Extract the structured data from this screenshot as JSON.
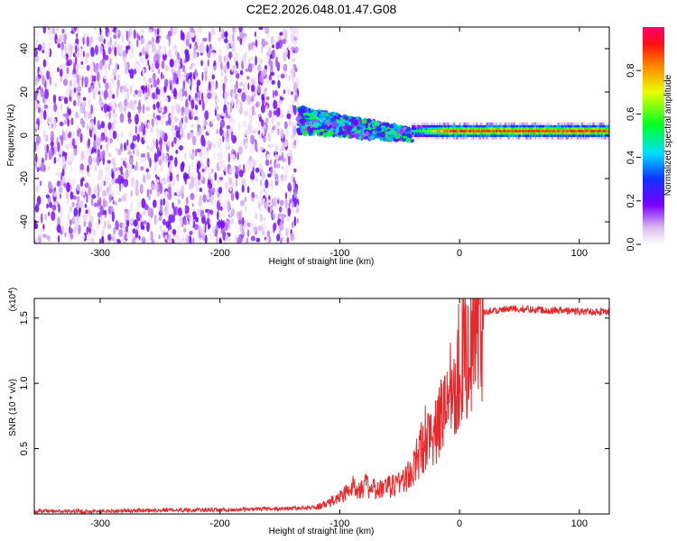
{
  "title": "C2E2.2026.048.01.47.G08",
  "chart_data": [
    {
      "type": "heatmap",
      "xlabel": "Height of straight line (km)",
      "ylabel": "Frequency (Hz)",
      "xlim": [
        -355,
        125
      ],
      "ylim": [
        -50,
        50
      ],
      "x_ticks": [
        -300,
        -200,
        -100,
        0,
        100
      ],
      "x_tick_labels": [
        "-300",
        "-200",
        "-100",
        "0",
        "100"
      ],
      "y_ticks": [
        -40,
        -20,
        0,
        20,
        40
      ],
      "y_tick_labels": [
        "-40",
        "-20",
        "0",
        "20",
        "40"
      ],
      "colorbar": {
        "label": "Normalized spectral amplitude",
        "range": [
          0,
          1
        ],
        "ticks": [
          0.0,
          0.2,
          0.4,
          0.6,
          0.8
        ],
        "tick_labels": [
          "0.0",
          "0.2",
          "0.4",
          "0.6",
          "0.8"
        ]
      },
      "regions": [
        {
          "x_range": [
            -355,
            -135
          ],
          "freq_range": [
            -50,
            50
          ],
          "description": "broadband noise",
          "amplitude": 0.1
        },
        {
          "x_range": [
            -135,
            -40
          ],
          "freq_center_start": 7,
          "freq_center_end": 0,
          "amplitude": 0.45
        },
        {
          "x_range": [
            -40,
            125
          ],
          "freq_center": 2,
          "amplitude_peak": 0.95
        }
      ]
    },
    {
      "type": "line",
      "xlabel": "Height of straight line (km)",
      "ylabel": "SNR (10 * v/v)",
      "scale_label": "(x10",
      "scale_exponent": "4",
      "scale_close": ")",
      "xlim": [
        -355,
        125
      ],
      "ylim": [
        0,
        1.65
      ],
      "x_ticks": [
        -300,
        -200,
        -100,
        0,
        100
      ],
      "x_tick_labels": [
        "-300",
        "-200",
        "-100",
        "0",
        "100"
      ],
      "y_ticks": [
        0.5,
        1.0,
        1.5
      ],
      "y_tick_labels": [
        "0.5",
        "1.0",
        "1.5"
      ],
      "color": "#e8282a",
      "series": [
        {
          "name": "SNR",
          "x": [
            -355,
            -300,
            -250,
            -200,
            -150,
            -120,
            -110,
            -100,
            -90,
            -80,
            -70,
            -60,
            -50,
            -40,
            -30,
            -25,
            -20,
            -15,
            -10,
            -5,
            0,
            5,
            10,
            15,
            20,
            30,
            50,
            80,
            100,
            125
          ],
          "y": [
            0.02,
            0.02,
            0.03,
            0.03,
            0.04,
            0.05,
            0.08,
            0.13,
            0.2,
            0.22,
            0.18,
            0.2,
            0.25,
            0.3,
            0.55,
            0.7,
            0.6,
            0.75,
            0.95,
            1.05,
            1.15,
            1.25,
            1.4,
            1.5,
            1.55,
            1.56,
            1.57,
            1.56,
            1.55,
            1.55
          ]
        }
      ]
    }
  ]
}
